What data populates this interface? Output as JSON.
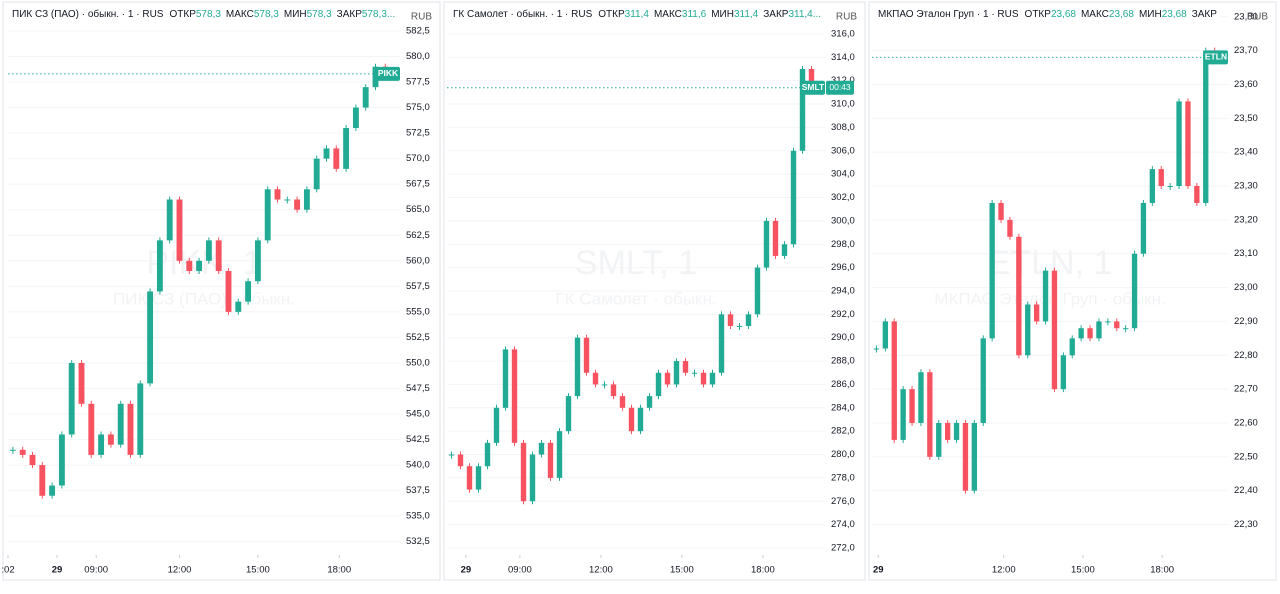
{
  "charts": [
    {
      "type": "candlestick",
      "name": "ПИК СЗ (ПАО) · обыкн. · 1 · RUS",
      "fields": [
        {
          "label": "ОТКР",
          "value": "578,3"
        },
        {
          "label": "МАКС",
          "value": "578,3"
        },
        {
          "label": "МИН",
          "value": "578,3"
        },
        {
          "label": "ЗАКР",
          "value": "578,3..."
        }
      ],
      "currency": "RUB",
      "watermark": "PIKK, 1",
      "watermark_name": "ПИК СЗ (ПАО) · обыкн.",
      "ticker": "PIKK",
      "last_value": 578.3,
      "up_color": "#22ab94",
      "down_color": "#f7525f",
      "xlim": [
        0,
        40
      ],
      "xticks": [
        {
          "value": 0,
          "label": ":02"
        },
        {
          "value": 5,
          "label": "29"
        },
        {
          "value": 9,
          "label": "09:00"
        },
        {
          "value": 17.5,
          "label": "12:00"
        },
        {
          "value": 25.5,
          "label": "15:00"
        },
        {
          "value": 33.8,
          "label": "18:00"
        }
      ],
      "ylim": [
        531.2,
        584.55
      ],
      "yticks": [
        {
          "value": 532.5,
          "label": "532,5"
        },
        {
          "value": 535,
          "label": "535,0"
        },
        {
          "value": 537.5,
          "label": "537,5"
        },
        {
          "value": 540,
          "label": "540,0"
        },
        {
          "value": 542.5,
          "label": "542,5"
        },
        {
          "value": 545,
          "label": "545,0"
        },
        {
          "value": 547.5,
          "label": "547,5"
        },
        {
          "value": 550,
          "label": "550,0"
        },
        {
          "value": 552.5,
          "label": "552,5"
        },
        {
          "value": 555,
          "label": "555,0"
        },
        {
          "value": 557.5,
          "label": "557,5"
        },
        {
          "value": 560,
          "label": "560,0"
        },
        {
          "value": 562.5,
          "label": "562,5"
        },
        {
          "value": 565,
          "label": "565,0"
        },
        {
          "value": 567.5,
          "label": "567,5"
        },
        {
          "value": 570,
          "label": "570,0"
        },
        {
          "value": 572.5,
          "label": "572,5"
        },
        {
          "value": 575,
          "label": "575,0"
        },
        {
          "value": 577.5,
          "label": "577,5"
        },
        {
          "value": 580,
          "label": "580,0"
        },
        {
          "value": 582.5,
          "label": "582,5"
        }
      ],
      "values": [
        541.5,
        541,
        540,
        537,
        538,
        543,
        550,
        546,
        541,
        543,
        542,
        546,
        541,
        548,
        557,
        562,
        566,
        560,
        559,
        560,
        562,
        559,
        555,
        556,
        558,
        562,
        567,
        566,
        566,
        565,
        567,
        570,
        571,
        569,
        573,
        575,
        577,
        579,
        578.3
      ]
    },
    {
      "type": "candlestick",
      "name": "ГК Самолет · обыкн. · 1 · RUS",
      "fields": [
        {
          "label": "ОТКР",
          "value": "311,4"
        },
        {
          "label": "МАКС",
          "value": "311,6"
        },
        {
          "label": "МИН",
          "value": "311,4"
        },
        {
          "label": "ЗАКР",
          "value": "311,4..."
        }
      ],
      "currency": "RUB",
      "watermark": "SMLT, 1",
      "watermark_name": "ГК Самолет · обыкн.",
      "ticker": "SMLT",
      "countdown": "00:43",
      "last_value": 311.4,
      "up_color": "#22ab94",
      "down_color": "#f7525f",
      "xlim": [
        0,
        42
      ],
      "xticks": [
        {
          "value": 2.1,
          "label": "29"
        },
        {
          "value": 8.1,
          "label": "09:00"
        },
        {
          "value": 17.1,
          "label": "12:00"
        },
        {
          "value": 26.1,
          "label": "15:00"
        },
        {
          "value": 35.1,
          "label": "18:00"
        }
      ],
      "ylim": [
        271.4,
        318.05
      ],
      "yticks": [
        {
          "value": 272,
          "label": "272,0"
        },
        {
          "value": 274,
          "label": "274,0"
        },
        {
          "value": 276,
          "label": "276,0"
        },
        {
          "value": 278,
          "label": "278,0"
        },
        {
          "value": 280,
          "label": "280,0"
        },
        {
          "value": 282,
          "label": "282,0"
        },
        {
          "value": 284,
          "label": "284,0"
        },
        {
          "value": 286,
          "label": "286,0"
        },
        {
          "value": 288,
          "label": "288,0"
        },
        {
          "value": 290,
          "label": "290,0"
        },
        {
          "value": 292,
          "label": "292,0"
        },
        {
          "value": 294,
          "label": "294,0"
        },
        {
          "value": 296,
          "label": "296,0"
        },
        {
          "value": 298,
          "label": "298,0"
        },
        {
          "value": 300,
          "label": "300,0"
        },
        {
          "value": 302,
          "label": "302,0"
        },
        {
          "value": 304,
          "label": "304,0"
        },
        {
          "value": 306,
          "label": "306,0"
        },
        {
          "value": 308,
          "label": "308,0"
        },
        {
          "value": 310,
          "label": "310,0"
        },
        {
          "value": 312,
          "label": "312,0"
        },
        {
          "value": 314,
          "label": "314,0"
        },
        {
          "value": 316,
          "label": "316,0"
        }
      ],
      "values": [
        280,
        279,
        277,
        279,
        281,
        284,
        289,
        281,
        276,
        280,
        281,
        278,
        282,
        285,
        290,
        287,
        286,
        286,
        285,
        284,
        282,
        284,
        285,
        287,
        286,
        288,
        287,
        287,
        286,
        287,
        292,
        291,
        291,
        292,
        296,
        300,
        297,
        298,
        306,
        313,
        311.4
      ]
    },
    {
      "type": "candlestick",
      "name": "МКПАО Эталон Груп · 1 · RUS",
      "fields": [
        {
          "label": "ОТКР",
          "value": "23,68"
        },
        {
          "label": "МАКС",
          "value": "23,68"
        },
        {
          "label": "МИН",
          "value": "23,68"
        },
        {
          "label": "ЗАКР",
          "value": null
        }
      ],
      "currency": "RUB",
      "watermark": "ETLN, 1",
      "watermark_name": "МКПАО Эталон Груп · обыкн.",
      "ticker": "ETLN",
      "last_value": 23.68,
      "up_color": "#22ab94",
      "down_color": "#f7525f",
      "xlim": [
        0,
        40
      ],
      "xticks": [
        {
          "value": 0.7,
          "label": "29"
        },
        {
          "value": 14.8,
          "label": "12:00"
        },
        {
          "value": 23.7,
          "label": "15:00"
        },
        {
          "value": 32.6,
          "label": "18:00"
        }
      ],
      "ylim": [
        22.21,
        23.82
      ],
      "yticks": [
        {
          "value": 22.3,
          "label": "22,30"
        },
        {
          "value": 22.4,
          "label": "22,40"
        },
        {
          "value": 22.5,
          "label": "22,50"
        },
        {
          "value": 22.6,
          "label": "22,60"
        },
        {
          "value": 22.7,
          "label": "22,70"
        },
        {
          "value": 22.8,
          "label": "22,80"
        },
        {
          "value": 22.9,
          "label": "22,90"
        },
        {
          "value": 23,
          "label": "23,00"
        },
        {
          "value": 23.1,
          "label": "23,10"
        },
        {
          "value": 23.2,
          "label": "23,20"
        },
        {
          "value": 23.3,
          "label": "23,30"
        },
        {
          "value": 23.4,
          "label": "23,40"
        },
        {
          "value": 23.5,
          "label": "23,50"
        },
        {
          "value": 23.6,
          "label": "23,60"
        },
        {
          "value": 23.7,
          "label": "23,70"
        },
        {
          "value": 23.8,
          "label": "23,80"
        }
      ],
      "values": [
        22.82,
        22.9,
        22.55,
        22.7,
        22.6,
        22.75,
        22.5,
        22.6,
        22.55,
        22.6,
        22.4,
        22.6,
        22.85,
        23.25,
        23.2,
        23.15,
        22.8,
        22.95,
        22.9,
        23.05,
        22.7,
        22.8,
        22.85,
        22.88,
        22.85,
        22.9,
        22.9,
        22.88,
        22.88,
        23.1,
        23.25,
        23.35,
        23.3,
        23.3,
        23.55,
        23.3,
        23.25,
        23.7,
        23.68
      ]
    }
  ]
}
